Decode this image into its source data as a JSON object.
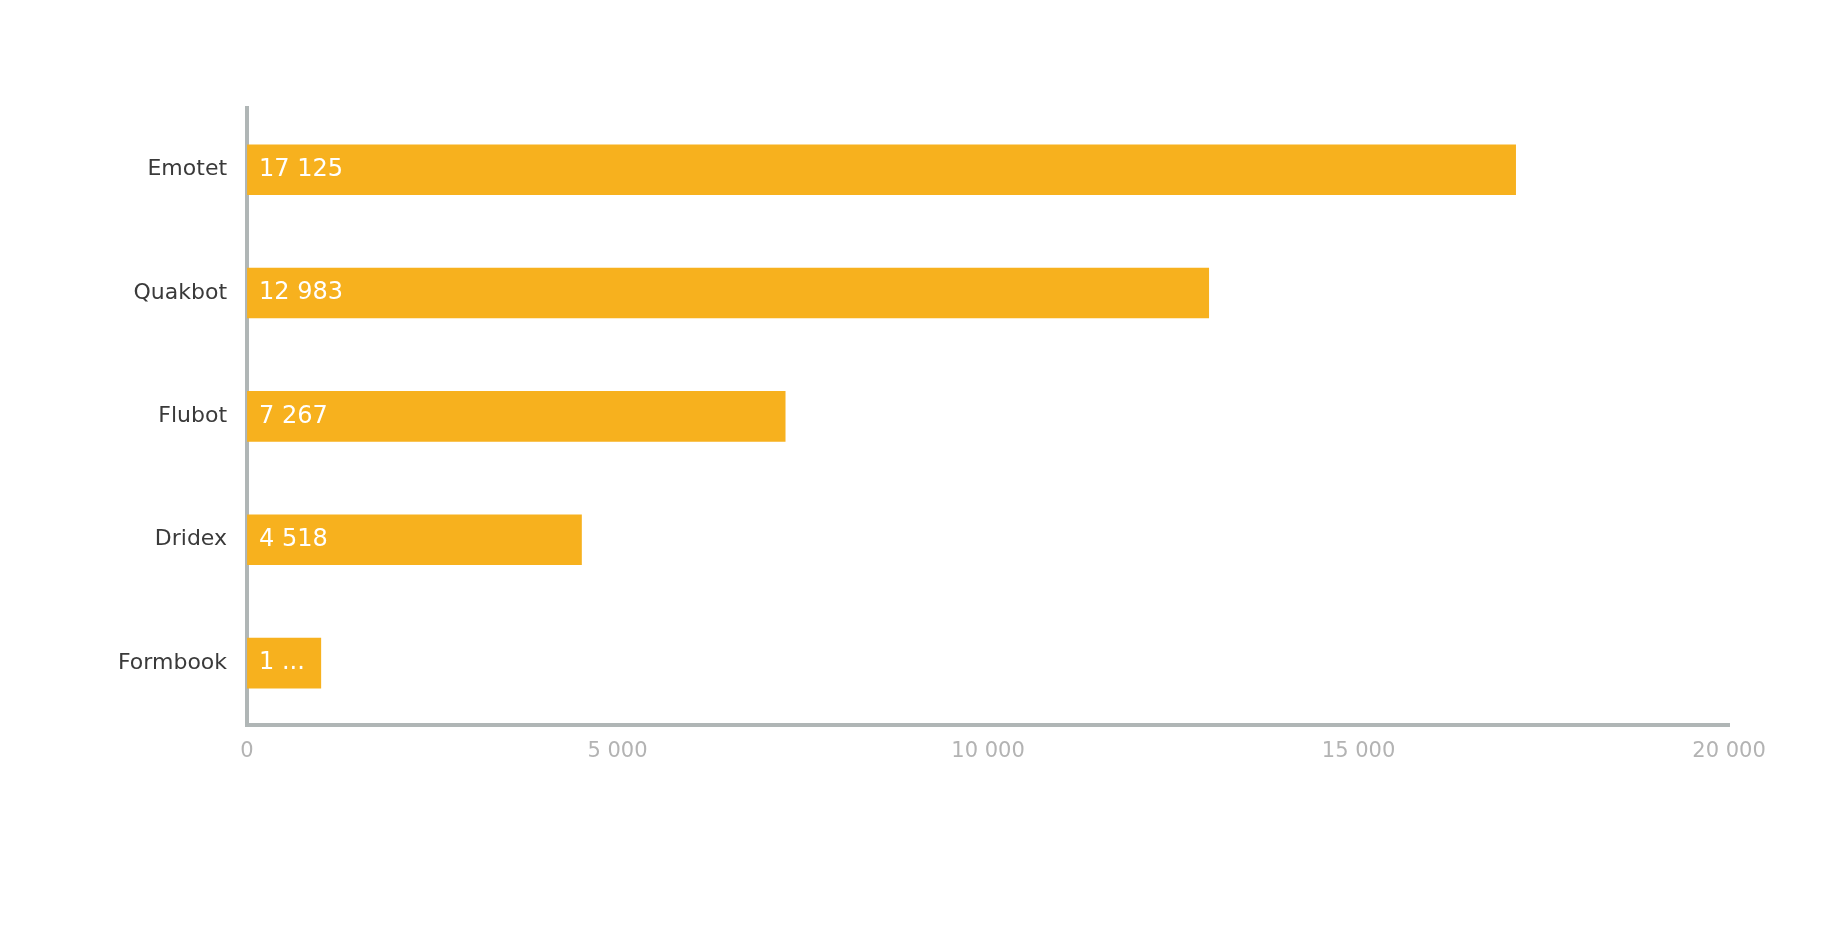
{
  "chart_data": {
    "type": "bar",
    "orientation": "horizontal",
    "categories": [
      "Emotet",
      "Quakbot",
      "Flubot",
      "Dridex",
      "Formbook"
    ],
    "values": [
      17125,
      12983,
      7267,
      4518,
      1000
    ],
    "value_labels": [
      "17 125",
      "12 983",
      "7 267",
      "4 518",
      "1 ..."
    ],
    "color": "#f7b11e",
    "xlim": [
      0,
      20000
    ],
    "xticks": [
      0,
      {
        "value": 5000,
        "label": "5 000"
      },
      {
        "value": 10000,
        "label": "10 000"
      },
      {
        "value": 15000,
        "label": "15 000"
      },
      {
        "value": 20000,
        "label": "20 000"
      }
    ],
    "grid": false,
    "legend": false
  }
}
